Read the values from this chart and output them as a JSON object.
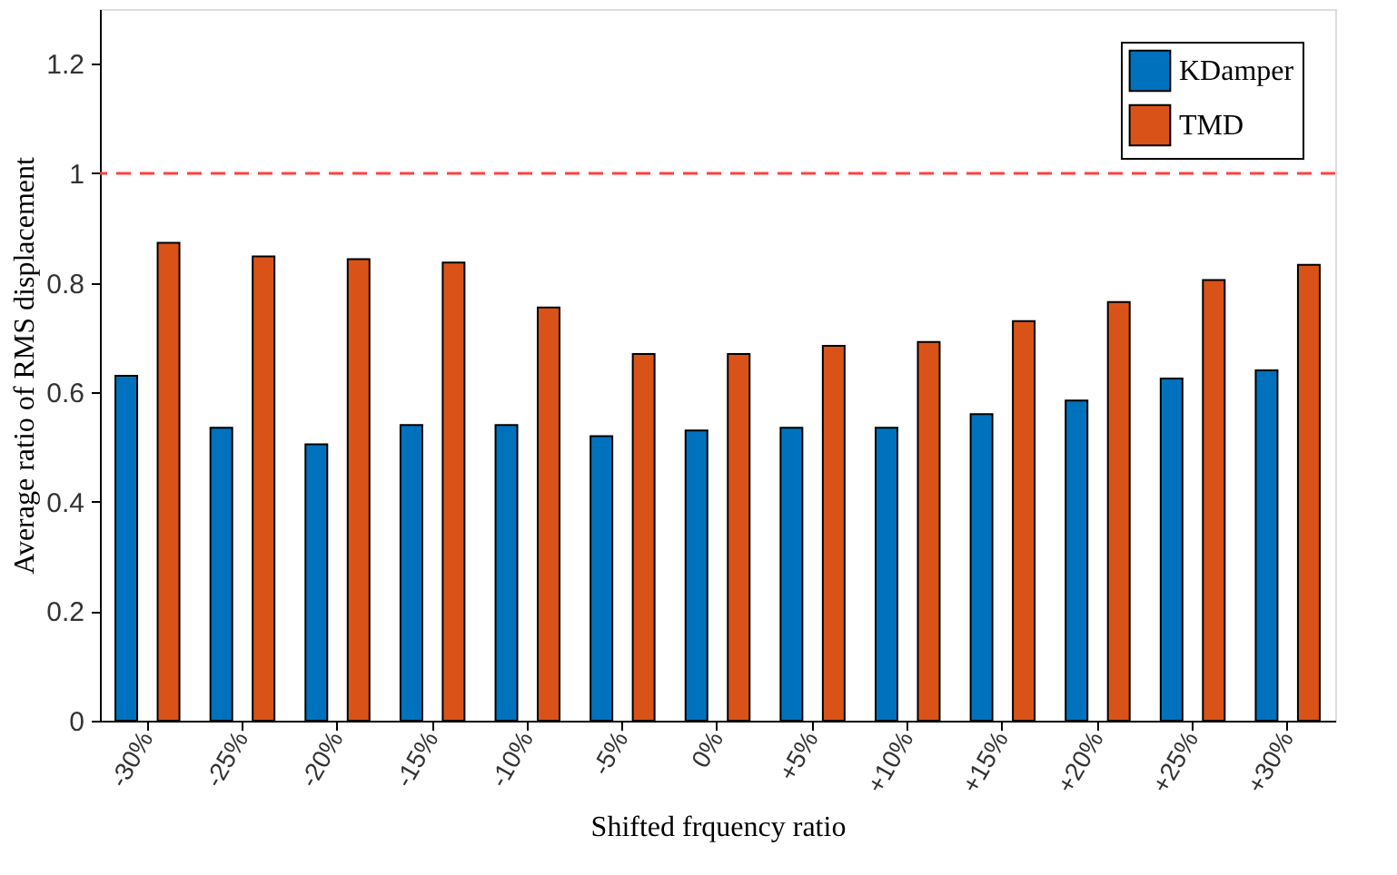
{
  "chart_data": {
    "type": "bar",
    "xlabel": "Shifted frquency ratio",
    "ylabel": "Average ratio of RMS displacement",
    "categories": [
      "-30%",
      "-25%",
      "-20%",
      "-15%",
      "-10%",
      "-5%",
      "0%",
      "+5%",
      "+10%",
      "+15%",
      "+20%",
      "+25%",
      "+30%"
    ],
    "series": [
      {
        "name": "KDamper",
        "color": "#0072bd",
        "values": [
          0.63,
          0.535,
          0.505,
          0.54,
          0.54,
          0.52,
          0.53,
          0.535,
          0.535,
          0.56,
          0.585,
          0.625,
          0.64
        ]
      },
      {
        "name": "TMD",
        "color": "#d95319",
        "values": [
          0.873,
          0.848,
          0.843,
          0.837,
          0.755,
          0.67,
          0.67,
          0.685,
          0.692,
          0.73,
          0.765,
          0.805,
          0.833
        ]
      }
    ],
    "ylim": [
      0,
      1.3
    ],
    "yticks": [
      0,
      0.2,
      0.4,
      0.6,
      0.8,
      1,
      1.2
    ],
    "ref_lines": [
      {
        "axis": "y",
        "value": 1,
        "color": "#ff4040",
        "line_style": "dashed"
      }
    ],
    "legend": "top right",
    "grid": false
  }
}
